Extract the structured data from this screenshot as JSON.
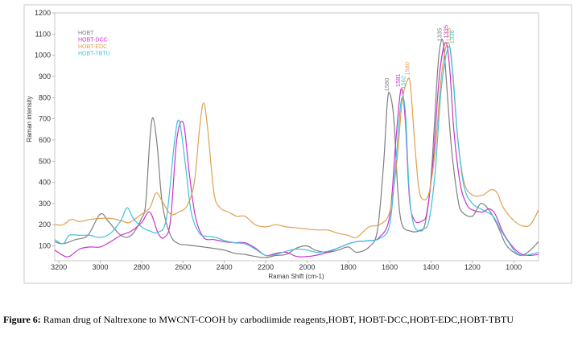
{
  "caption": {
    "label": "Figure 6:",
    "text": " Raman drug of Naltrexone to MWCNT-COOH by carbodiimide reagents,HOBT, HOBT-DCC,HOBT-EDC,HOBT-TBTU"
  },
  "chart_data": {
    "type": "line",
    "xlabel": "Raman Shift (cm-1)",
    "ylabel": "Raman intensity",
    "xlim": [
      3220,
      880
    ],
    "ylim": [
      30,
      1200
    ],
    "x_reversed": true,
    "x_ticks": [
      3200,
      3000,
      2800,
      2600,
      2400,
      2200,
      2000,
      1800,
      1600,
      1400,
      1200,
      1000
    ],
    "y_ticks": [
      100,
      200,
      300,
      400,
      500,
      600,
      700,
      800,
      900,
      1000,
      1100,
      1200
    ],
    "grid": false,
    "legend_position": "top-left",
    "series": [
      {
        "name": "HOBT",
        "color": "#7f7f7f",
        "points": [
          [
            3220,
            120
          ],
          [
            3180,
            110
          ],
          [
            3120,
            130
          ],
          [
            3060,
            150
          ],
          [
            3000,
            250
          ],
          [
            2960,
            215
          ],
          [
            2900,
            150
          ],
          [
            2850,
            150
          ],
          [
            2800,
            230
          ],
          [
            2780,
            300
          ],
          [
            2760,
            600
          ],
          [
            2745,
            705
          ],
          [
            2725,
            580
          ],
          [
            2700,
            300
          ],
          [
            2660,
            150
          ],
          [
            2620,
            110
          ],
          [
            2580,
            105
          ],
          [
            2500,
            95
          ],
          [
            2400,
            80
          ],
          [
            2350,
            65
          ],
          [
            2300,
            60
          ],
          [
            2250,
            50
          ],
          [
            2200,
            45
          ],
          [
            2150,
            55
          ],
          [
            2100,
            60
          ],
          [
            2050,
            90
          ],
          [
            2000,
            100
          ],
          [
            1960,
            80
          ],
          [
            1900,
            70
          ],
          [
            1850,
            80
          ],
          [
            1800,
            95
          ],
          [
            1760,
            70
          ],
          [
            1700,
            95
          ],
          [
            1660,
            170
          ],
          [
            1630,
            480
          ],
          [
            1612,
            770
          ],
          [
            1600,
            820
          ],
          [
            1580,
            700
          ],
          [
            1560,
            350
          ],
          [
            1540,
            200
          ],
          [
            1500,
            170
          ],
          [
            1460,
            170
          ],
          [
            1430,
            200
          ],
          [
            1400,
            420
          ],
          [
            1370,
            900
          ],
          [
            1355,
            1050
          ],
          [
            1340,
            1050
          ],
          [
            1320,
            800
          ],
          [
            1300,
            550
          ],
          [
            1270,
            320
          ],
          [
            1250,
            260
          ],
          [
            1200,
            240
          ],
          [
            1160,
            300
          ],
          [
            1120,
            270
          ],
          [
            1080,
            200
          ],
          [
            1040,
            110
          ],
          [
            1000,
            70
          ],
          [
            960,
            55
          ],
          [
            920,
            80
          ],
          [
            880,
            120
          ]
        ]
      },
      {
        "name": "HOBT-DCC",
        "color": "#cc33cc",
        "points": [
          [
            3220,
            80
          ],
          [
            3180,
            55
          ],
          [
            3150,
            50
          ],
          [
            3100,
            85
          ],
          [
            3050,
            95
          ],
          [
            3000,
            95
          ],
          [
            2950,
            120
          ],
          [
            2900,
            150
          ],
          [
            2850,
            170
          ],
          [
            2800,
            210
          ],
          [
            2760,
            260
          ],
          [
            2720,
            160
          ],
          [
            2690,
            140
          ],
          [
            2660,
            220
          ],
          [
            2630,
            600
          ],
          [
            2598,
            680
          ],
          [
            2570,
            450
          ],
          [
            2540,
            240
          ],
          [
            2500,
            140
          ],
          [
            2450,
            130
          ],
          [
            2400,
            120
          ],
          [
            2350,
            115
          ],
          [
            2300,
            115
          ],
          [
            2250,
            90
          ],
          [
            2200,
            55
          ],
          [
            2150,
            65
          ],
          [
            2100,
            70
          ],
          [
            2050,
            50
          ],
          [
            2000,
            50
          ],
          [
            1960,
            55
          ],
          [
            1900,
            70
          ],
          [
            1850,
            90
          ],
          [
            1800,
            110
          ],
          [
            1760,
            120
          ],
          [
            1700,
            125
          ],
          [
            1650,
            140
          ],
          [
            1600,
            240
          ],
          [
            1570,
            600
          ],
          [
            1545,
            840
          ],
          [
            1525,
            700
          ],
          [
            1505,
            330
          ],
          [
            1480,
            220
          ],
          [
            1440,
            220
          ],
          [
            1420,
            260
          ],
          [
            1390,
            500
          ],
          [
            1360,
            900
          ],
          [
            1330,
            1060
          ],
          [
            1310,
            940
          ],
          [
            1290,
            650
          ],
          [
            1260,
            400
          ],
          [
            1230,
            300
          ],
          [
            1200,
            270
          ],
          [
            1150,
            260
          ],
          [
            1120,
            275
          ],
          [
            1090,
            250
          ],
          [
            1050,
            160
          ],
          [
            1000,
            90
          ],
          [
            960,
            60
          ],
          [
            920,
            55
          ],
          [
            880,
            60
          ]
        ]
      },
      {
        "name": "HOBT-EDC",
        "color": "#e0a050",
        "points": [
          [
            3220,
            200
          ],
          [
            3180,
            200
          ],
          [
            3140,
            225
          ],
          [
            3100,
            215
          ],
          [
            3050,
            225
          ],
          [
            3000,
            230
          ],
          [
            2950,
            230
          ],
          [
            2900,
            220
          ],
          [
            2860,
            210
          ],
          [
            2800,
            250
          ],
          [
            2760,
            280
          ],
          [
            2730,
            350
          ],
          [
            2700,
            310
          ],
          [
            2660,
            250
          ],
          [
            2620,
            260
          ],
          [
            2580,
            290
          ],
          [
            2545,
            400
          ],
          [
            2520,
            650
          ],
          [
            2500,
            775
          ],
          [
            2480,
            650
          ],
          [
            2450,
            350
          ],
          [
            2420,
            280
          ],
          [
            2380,
            260
          ],
          [
            2340,
            240
          ],
          [
            2300,
            240
          ],
          [
            2250,
            200
          ],
          [
            2200,
            190
          ],
          [
            2150,
            200
          ],
          [
            2100,
            190
          ],
          [
            2050,
            185
          ],
          [
            2000,
            180
          ],
          [
            1950,
            175
          ],
          [
            1900,
            175
          ],
          [
            1850,
            160
          ],
          [
            1800,
            150
          ],
          [
            1760,
            140
          ],
          [
            1700,
            190
          ],
          [
            1650,
            200
          ],
          [
            1600,
            260
          ],
          [
            1565,
            500
          ],
          [
            1540,
            780
          ],
          [
            1515,
            880
          ],
          [
            1500,
            860
          ],
          [
            1480,
            600
          ],
          [
            1460,
            380
          ],
          [
            1440,
            320
          ],
          [
            1410,
            350
          ],
          [
            1380,
            550
          ],
          [
            1350,
            900
          ],
          [
            1320,
            1060
          ],
          [
            1300,
            960
          ],
          [
            1270,
            600
          ],
          [
            1240,
            400
          ],
          [
            1200,
            340
          ],
          [
            1150,
            340
          ],
          [
            1110,
            365
          ],
          [
            1080,
            350
          ],
          [
            1050,
            280
          ],
          [
            1000,
            220
          ],
          [
            960,
            195
          ],
          [
            920,
            200
          ],
          [
            880,
            270
          ]
        ]
      },
      {
        "name": "HOBT-TBTU",
        "color": "#40c0e0",
        "points": [
          [
            3220,
            130
          ],
          [
            3180,
            110
          ],
          [
            3150,
            150
          ],
          [
            3100,
            150
          ],
          [
            3050,
            150
          ],
          [
            3000,
            140
          ],
          [
            2950,
            160
          ],
          [
            2900,
            220
          ],
          [
            2870,
            280
          ],
          [
            2840,
            230
          ],
          [
            2800,
            190
          ],
          [
            2760,
            170
          ],
          [
            2720,
            165
          ],
          [
            2680,
            230
          ],
          [
            2640,
            600
          ],
          [
            2618,
            690
          ],
          [
            2590,
            500
          ],
          [
            2560,
            260
          ],
          [
            2520,
            160
          ],
          [
            2480,
            145
          ],
          [
            2440,
            140
          ],
          [
            2400,
            125
          ],
          [
            2350,
            115
          ],
          [
            2300,
            110
          ],
          [
            2250,
            85
          ],
          [
            2200,
            55
          ],
          [
            2150,
            60
          ],
          [
            2100,
            75
          ],
          [
            2050,
            85
          ],
          [
            2000,
            80
          ],
          [
            1950,
            70
          ],
          [
            1900,
            75
          ],
          [
            1850,
            90
          ],
          [
            1800,
            110
          ],
          [
            1760,
            120
          ],
          [
            1700,
            125
          ],
          [
            1650,
            135
          ],
          [
            1600,
            200
          ],
          [
            1570,
            500
          ],
          [
            1545,
            780
          ],
          [
            1525,
            740
          ],
          [
            1505,
            350
          ],
          [
            1480,
            190
          ],
          [
            1440,
            180
          ],
          [
            1410,
            220
          ],
          [
            1380,
            450
          ],
          [
            1350,
            850
          ],
          [
            1315,
            1040
          ],
          [
            1295,
            920
          ],
          [
            1270,
            600
          ],
          [
            1240,
            380
          ],
          [
            1200,
            300
          ],
          [
            1150,
            270
          ],
          [
            1100,
            240
          ],
          [
            1060,
            170
          ],
          [
            1020,
            110
          ],
          [
            990,
            70
          ],
          [
            960,
            55
          ],
          [
            920,
            60
          ],
          [
            880,
            70
          ]
        ]
      }
    ],
    "annotations": [
      {
        "text": "1580",
        "x": 1605,
        "y": 830,
        "color": "#7f7f7f"
      },
      {
        "text": "1581",
        "x": 1550,
        "y": 850,
        "color": "#cc33cc"
      },
      {
        "text": "1562",
        "x": 1525,
        "y": 840,
        "color": "#40c0e0"
      },
      {
        "text": "1580",
        "x": 1505,
        "y": 905,
        "color": "#e0a050"
      },
      {
        "text": "1335",
        "x": 1350,
        "y": 1065,
        "color": "#7f7f7f"
      },
      {
        "text": "1335",
        "x": 1318,
        "y": 1080,
        "color": "#cc33cc"
      },
      {
        "text": "1335",
        "x": 1304,
        "y": 1065,
        "color": "#e0a050"
      },
      {
        "text": "1336",
        "x": 1288,
        "y": 1055,
        "color": "#40c0e0"
      }
    ]
  }
}
